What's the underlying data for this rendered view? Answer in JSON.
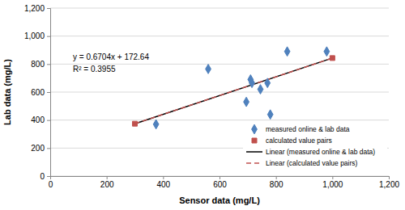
{
  "chart_data": {
    "type": "scatter",
    "x_label": "Sensor data (mg/L)",
    "y_label": "Lab data (mg/L)",
    "xlim": [
      0,
      1200
    ],
    "ylim": [
      0,
      1200
    ],
    "xticks": [
      0,
      200,
      400,
      600,
      800,
      {
        "value": 1000,
        "label": "1,000"
      },
      {
        "value": 1200,
        "label": "1,200"
      }
    ],
    "yticks": [
      0,
      200,
      400,
      600,
      800,
      {
        "value": 1000,
        "label": "1,000"
      },
      {
        "value": 1200,
        "label": "1,200"
      }
    ],
    "grid": true,
    "legend": "lower right",
    "annotations": [
      "y = 0.6704x + 172.64",
      "R² = 0.3955"
    ],
    "series": [
      {
        "name": "measured online & lab data",
        "type": "scatter",
        "marker": "diamond",
        "color": "#4f81bd",
        "x": [
          375,
          560,
          695,
          710,
          715,
          745,
          770,
          780,
          840,
          980
        ],
        "values": [
          370,
          765,
          530,
          690,
          665,
          620,
          665,
          440,
          890,
          890
        ]
      },
      {
        "name": "calculated value pairs",
        "type": "scatter",
        "marker": "square",
        "color": "#c0504d",
        "x": [
          300,
          1000
        ],
        "values": [
          374,
          843
        ]
      },
      {
        "name": "Linear (measured online & lab data)",
        "type": "line",
        "line_style": "solid",
        "color": "#000000",
        "x": [
          300,
          1000
        ],
        "values": [
          374,
          843
        ]
      },
      {
        "name": "Linear (calculated value pairs)",
        "type": "line",
        "line_style": "dashed",
        "color": "#c0504d",
        "x": [
          300,
          1000
        ],
        "values": [
          374,
          843
        ]
      }
    ]
  }
}
